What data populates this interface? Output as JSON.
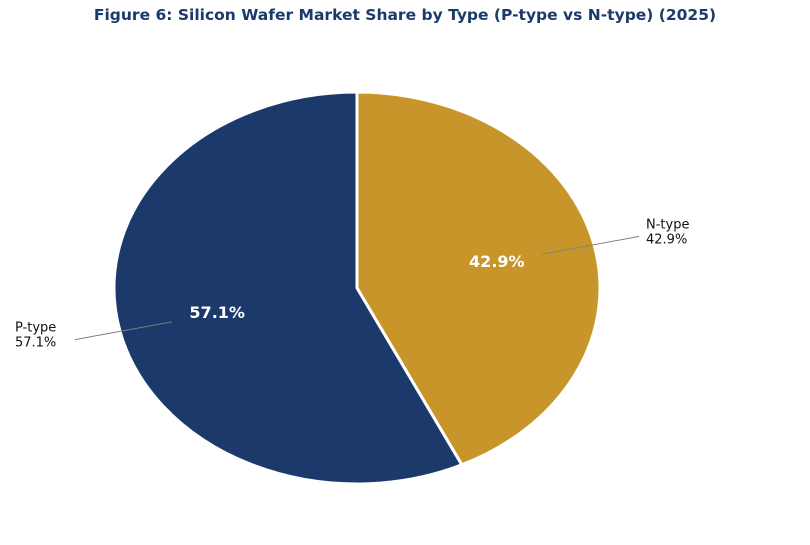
{
  "chart_data": {
    "type": "pie",
    "title": "Figure 6: Silicon Wafer Market Share by Type (P-type vs N-type) (2025)",
    "slices": [
      {
        "label": "N-type",
        "value": 42.9,
        "pct_label": "42.9%",
        "color": "#c8952b"
      },
      {
        "label": "P-type",
        "value": 57.1,
        "pct_label": "57.1%",
        "color": "#1b3a6b"
      }
    ],
    "start_angle": "90",
    "direction": "clockwise",
    "legend": "none",
    "edge_color": "#ffffff"
  }
}
